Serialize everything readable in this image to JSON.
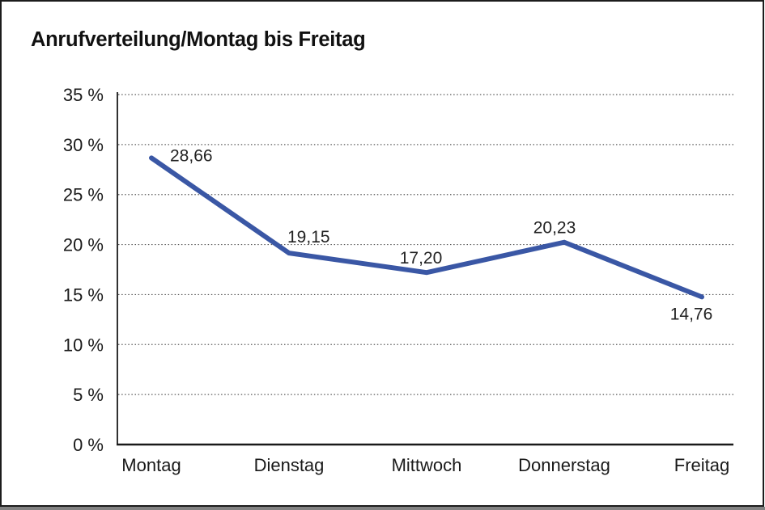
{
  "window": {
    "frame_color": "#1c1c1c",
    "shadow_color": "#828282",
    "background_color": "#ffffff"
  },
  "chart_data": {
    "type": "line",
    "title": "Anrufverteilung/Montag bis Freitag",
    "xlabel": "",
    "ylabel": "",
    "categories": [
      "Montag",
      "Dienstag",
      "Mittwoch",
      "Donnerstag",
      "Freitag"
    ],
    "series": [
      {
        "name": "Anrufverteilung",
        "values": [
          28.66,
          19.15,
          17.2,
          20.23,
          14.76
        ],
        "data_labels": [
          "28,66",
          "19,15",
          "17,20",
          "20,23",
          "14,76"
        ]
      }
    ],
    "ylim": [
      0,
      35
    ],
    "y_ticks": [
      0,
      5,
      10,
      15,
      20,
      25,
      30,
      35
    ],
    "y_tick_labels": [
      "0 %",
      "5 %",
      "10 %",
      "15 %",
      "20 %",
      "25 %",
      "30 %",
      "35 %"
    ],
    "grid": "horizontal-dotted",
    "legend": "none",
    "line_color": "#3A57A5",
    "grid_color": "#5a5a5a",
    "axis_color": "#1a1a1a"
  }
}
